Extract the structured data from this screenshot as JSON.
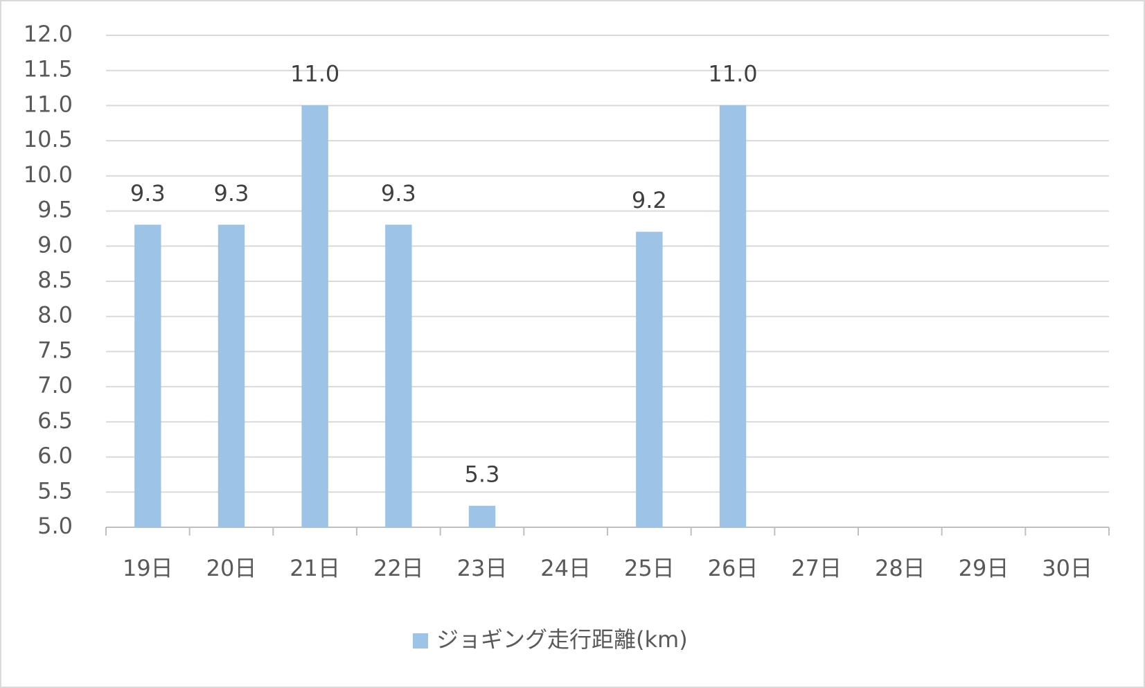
{
  "chart_data": {
    "type": "bar",
    "categories": [
      "19日",
      "20日",
      "21日",
      "22日",
      "23日",
      "24日",
      "25日",
      "26日",
      "27日",
      "28日",
      "29日",
      "30日"
    ],
    "series": [
      {
        "name": "ジョギング走行距離(km)",
        "color": "#9dc3e6",
        "values": [
          9.3,
          9.3,
          11,
          9.3,
          5.3,
          5,
          9.2,
          11,
          5,
          null,
          null,
          null
        ],
        "value_labels": [
          "9.3",
          "9.3",
          "11.0",
          "9.3",
          "5.3",
          null,
          "9.2",
          "11.0",
          null,
          null,
          null,
          null
        ]
      }
    ],
    "ylim": [
      5,
      12
    ],
    "yticks": [
      {
        "value": 5,
        "label": "5.0"
      },
      5.5,
      {
        "value": 6,
        "label": "6.0"
      },
      6.5,
      {
        "value": 7,
        "label": "7.0"
      },
      7.5,
      {
        "value": 8,
        "label": "8.0"
      },
      8.5,
      {
        "value": 9,
        "label": "9.0"
      },
      9.5,
      {
        "value": 10,
        "label": "10.0"
      },
      10.5,
      {
        "value": 11,
        "label": "11.0"
      },
      11.5,
      {
        "value": 12,
        "label": "12.0"
      }
    ],
    "grid": true,
    "legend": "bottom"
  }
}
